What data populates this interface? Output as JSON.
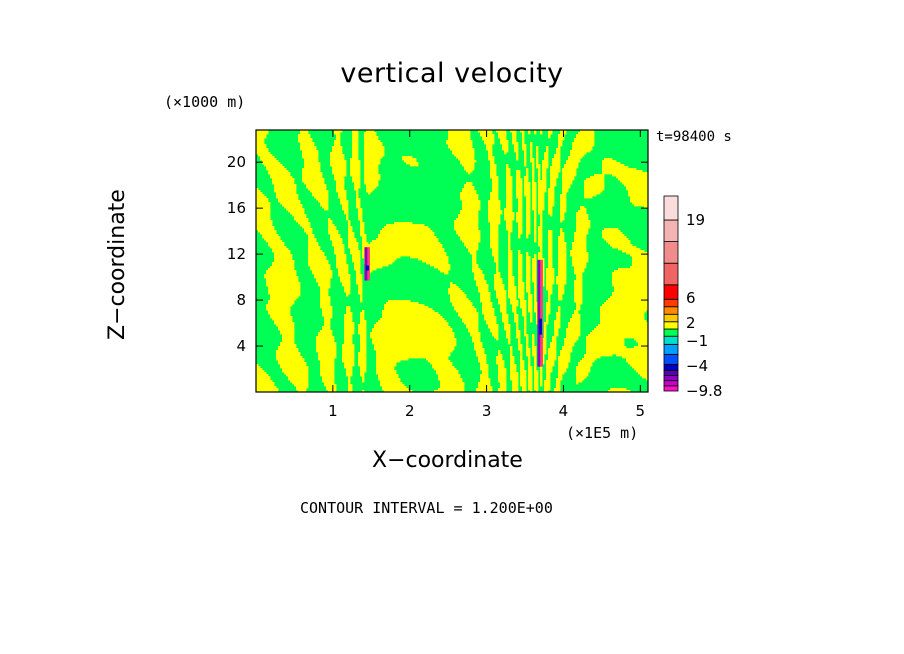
{
  "chart_data": {
    "type": "heatmap",
    "title": "vertical velocity",
    "xlabel": "X−coordinate",
    "ylabel": "Z−coordinate",
    "x_unit": "(×1E5 m)",
    "y_unit": "(×1000 m)",
    "time_label": "t=98400 s",
    "contour_label": "CONTOUR INTERVAL = 1.200E+00",
    "xlim": [
      0,
      5.1
    ],
    "ylim": [
      0,
      22.8
    ],
    "x_ticks": [
      1,
      2,
      3,
      4,
      5
    ],
    "y_ticks": [
      4,
      8,
      12,
      16,
      20
    ],
    "colorbar": {
      "labels": [
        19,
        6,
        2,
        -1,
        -4,
        -9.8
      ],
      "label_text": [
        "19",
        "6",
        "2",
        "−1",
        "−4",
        "−9.8"
      ],
      "levels": [
        {
          "min": -9.8,
          "max": -8.6,
          "color": "#ff10c8"
        },
        {
          "min": -8.6,
          "max": -7.4,
          "color": "#c800c8"
        },
        {
          "min": -7.4,
          "max": -6.2,
          "color": "#9000c0"
        },
        {
          "min": -6.2,
          "max": -5.0,
          "color": "#5a00b4"
        },
        {
          "min": -5.0,
          "max": -3.8,
          "color": "#0000c8"
        },
        {
          "min": -3.8,
          "max": -2.6,
          "color": "#0050ff"
        },
        {
          "min": -2.6,
          "max": -1.4,
          "color": "#00a0ff"
        },
        {
          "min": -1.4,
          "max": -0.2,
          "color": "#00e0c8"
        },
        {
          "min": -0.2,
          "max": 1.0,
          "color": "#00ff55"
        },
        {
          "min": 1.0,
          "max": 2.2,
          "color": "#ffff00"
        },
        {
          "min": 2.2,
          "max": 3.4,
          "color": "#ffc800"
        },
        {
          "min": 3.4,
          "max": 4.6,
          "color": "#ff8c00"
        },
        {
          "min": 4.6,
          "max": 5.8,
          "color": "#ff3c00"
        },
        {
          "min": 5.8,
          "max": 8.2,
          "color": "#ff0000"
        },
        {
          "min": 8.2,
          "max": 11.8,
          "color": "#f06464"
        },
        {
          "min": 11.8,
          "max": 15.4,
          "color": "#f08c8c"
        },
        {
          "min": 15.4,
          "max": 19.0,
          "color": "#f5b4b4"
        },
        {
          "min": 19.0,
          "max": 22.6,
          "color": "#fadcdc"
        }
      ]
    },
    "field": {
      "base_colors": [
        "#00ff55",
        "#ffff00"
      ],
      "note": "field dominated by values between -0.2 and 2.2 alternating; localized strong updrafts/downdrafts near x=1.45 and x=3.7",
      "features": [
        {
          "x": 1.45,
          "z_min": 9.7,
          "z_max": 12.6,
          "kind": "dipole"
        },
        {
          "x": 3.7,
          "z_min": 2.2,
          "z_max": 11.5,
          "kind": "dipole"
        }
      ]
    }
  }
}
